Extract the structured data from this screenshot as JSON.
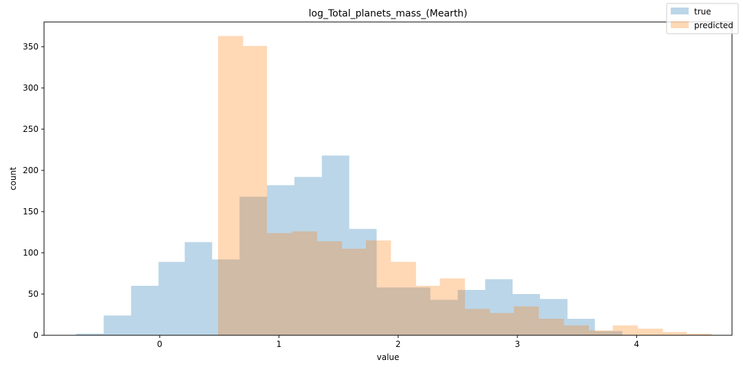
{
  "chart_data": {
    "type": "bar",
    "title": "log_Total_planets_mass_(Mearth)",
    "xlabel": "value",
    "ylabel": "count",
    "xlim": [
      -0.97,
      4.8
    ],
    "ylim": [
      0,
      380
    ],
    "xticks": [
      0,
      1,
      2,
      3,
      4
    ],
    "yticks": [
      0,
      50,
      100,
      150,
      200,
      250,
      300,
      350
    ],
    "grid": false,
    "legend_placement": "top-right",
    "alpha": 0.3,
    "series": [
      {
        "name": "true",
        "color": "#1f77b4",
        "bins": [
          {
            "x0": -0.7,
            "x1": -0.47,
            "count": 2
          },
          {
            "x0": -0.47,
            "x1": -0.24,
            "count": 24
          },
          {
            "x0": -0.24,
            "x1": -0.01,
            "count": 60
          },
          {
            "x0": -0.01,
            "x1": 0.21,
            "count": 89
          },
          {
            "x0": 0.21,
            "x1": 0.44,
            "count": 113
          },
          {
            "x0": 0.44,
            "x1": 0.67,
            "count": 92
          },
          {
            "x0": 0.67,
            "x1": 0.9,
            "count": 168
          },
          {
            "x0": 0.9,
            "x1": 1.13,
            "count": 182
          },
          {
            "x0": 1.13,
            "x1": 1.36,
            "count": 192
          },
          {
            "x0": 1.36,
            "x1": 1.59,
            "count": 218
          },
          {
            "x0": 1.59,
            "x1": 1.82,
            "count": 129
          },
          {
            "x0": 1.82,
            "x1": 2.05,
            "count": 58
          },
          {
            "x0": 2.05,
            "x1": 2.27,
            "count": 58
          },
          {
            "x0": 2.27,
            "x1": 2.5,
            "count": 43
          },
          {
            "x0": 2.5,
            "x1": 2.73,
            "count": 55
          },
          {
            "x0": 2.73,
            "x1": 2.96,
            "count": 68
          },
          {
            "x0": 2.96,
            "x1": 3.19,
            "count": 50
          },
          {
            "x0": 3.19,
            "x1": 3.42,
            "count": 44
          },
          {
            "x0": 3.42,
            "x1": 3.65,
            "count": 20
          },
          {
            "x0": 3.65,
            "x1": 3.88,
            "count": 5
          }
        ]
      },
      {
        "name": "predicted",
        "color": "#ff7f0e",
        "bins": [
          {
            "x0": 0.49,
            "x1": 0.7,
            "count": 363
          },
          {
            "x0": 0.7,
            "x1": 0.9,
            "count": 351
          },
          {
            "x0": 0.9,
            "x1": 1.11,
            "count": 124
          },
          {
            "x0": 1.11,
            "x1": 1.32,
            "count": 126
          },
          {
            "x0": 1.32,
            "x1": 1.53,
            "count": 114
          },
          {
            "x0": 1.53,
            "x1": 1.73,
            "count": 105
          },
          {
            "x0": 1.73,
            "x1": 1.94,
            "count": 115
          },
          {
            "x0": 1.94,
            "x1": 2.15,
            "count": 89
          },
          {
            "x0": 2.15,
            "x1": 2.35,
            "count": 60
          },
          {
            "x0": 2.35,
            "x1": 2.56,
            "count": 69
          },
          {
            "x0": 2.56,
            "x1": 2.77,
            "count": 32
          },
          {
            "x0": 2.77,
            "x1": 2.97,
            "count": 27
          },
          {
            "x0": 2.97,
            "x1": 3.18,
            "count": 35
          },
          {
            "x0": 3.18,
            "x1": 3.39,
            "count": 20
          },
          {
            "x0": 3.39,
            "x1": 3.6,
            "count": 12
          },
          {
            "x0": 3.6,
            "x1": 3.8,
            "count": 6
          },
          {
            "x0": 3.8,
            "x1": 4.01,
            "count": 12
          },
          {
            "x0": 4.01,
            "x1": 4.22,
            "count": 8
          },
          {
            "x0": 4.22,
            "x1": 4.42,
            "count": 4
          },
          {
            "x0": 4.42,
            "x1": 4.63,
            "count": 2
          }
        ]
      }
    ]
  }
}
